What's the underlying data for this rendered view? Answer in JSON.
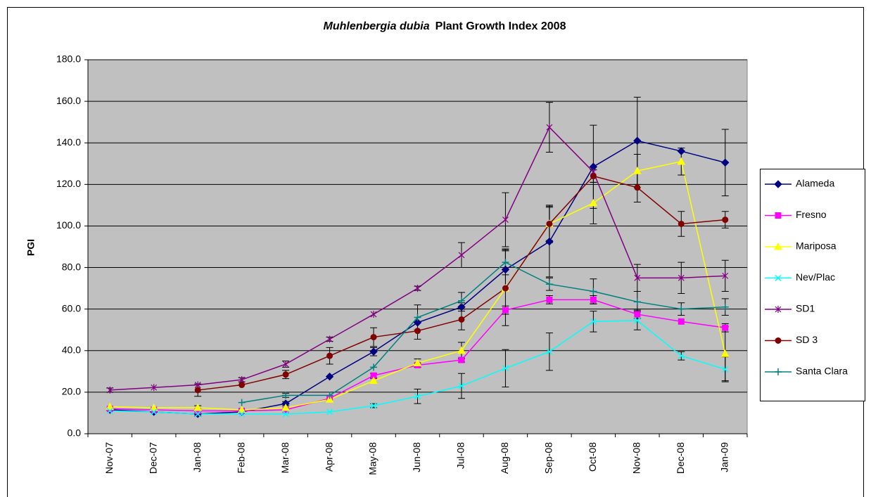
{
  "chart_data": {
    "type": "line",
    "title": [
      "Muhlenbergia dubia",
      "Plant Growth Index 2008"
    ],
    "y_label": "PGI",
    "categories": [
      "Nov-07",
      "Dec-07",
      "Jan-08",
      "Feb-08",
      "Mar-08",
      "Apr-08",
      "May-08",
      "Jun-08",
      "Jul-08",
      "Aug-08",
      "Sep-08",
      "Oct-08",
      "Nov-08",
      "Dec-08",
      "Jan-09"
    ],
    "ylim": [
      0,
      180
    ],
    "yticks": [
      {
        "value": 0,
        "label": "0.0"
      },
      {
        "value": 20,
        "label": "20.0"
      },
      {
        "value": 40,
        "label": "40.0"
      },
      {
        "value": 60,
        "label": "60.0"
      },
      {
        "value": 80,
        "label": "80.0"
      },
      {
        "value": 100,
        "label": "100.0"
      },
      {
        "value": 120,
        "label": "120.0"
      },
      {
        "value": 140,
        "label": "140.0"
      },
      {
        "value": 160,
        "label": "160.0"
      },
      {
        "value": 180,
        "label": "180.0"
      }
    ],
    "grid": true,
    "legend": "right",
    "series": [
      {
        "name": "Alameda",
        "color": "#000080",
        "marker": "diamond",
        "values": [
          11.5,
          10.5,
          9.5,
          10.5,
          14.5,
          27.5,
          39.5,
          53.5,
          61,
          79,
          92.5,
          128.5,
          141,
          136,
          130.5
        ],
        "errors": [
          null,
          null,
          1,
          null,
          1,
          null,
          2,
          null,
          2,
          10,
          17,
          20,
          21,
          null,
          16
        ]
      },
      {
        "name": "Fresno",
        "color": "#ff00ff",
        "marker": "square",
        "values": [
          12,
          11.5,
          11,
          11,
          11.5,
          17,
          28,
          33,
          35.5,
          59.5,
          64.5,
          64.5,
          57.5,
          54,
          51
        ],
        "errors": [
          null,
          null,
          null,
          null,
          null,
          null,
          1,
          1,
          1,
          2,
          2,
          2,
          2,
          null,
          2
        ]
      },
      {
        "name": "Mariposa",
        "color": "#ffff00",
        "marker": "triangle",
        "values": [
          13,
          12.5,
          12.5,
          11.5,
          12.5,
          16.5,
          25.5,
          34,
          40,
          70,
          101,
          111,
          126.5,
          131,
          38.5
        ],
        "errors": [
          null,
          null,
          1,
          null,
          null,
          null,
          1,
          2,
          4,
          null,
          9,
          10,
          8,
          6.5,
          13
        ]
      },
      {
        "name": "Nev/Plac",
        "color": "#00ffff",
        "marker": "x",
        "values": [
          11,
          10.5,
          9.5,
          9.5,
          9.5,
          10.5,
          13.5,
          18,
          23,
          31.5,
          39.5,
          54,
          54.5,
          37.5,
          31
        ],
        "errors": [
          null,
          null,
          null,
          null,
          null,
          null,
          1,
          3.5,
          6,
          9,
          9,
          5,
          4.5,
          2,
          6
        ]
      },
      {
        "name": "SD1",
        "color": "#800080",
        "marker": "asterisk",
        "values": [
          21,
          22.25,
          23.5,
          26,
          33.5,
          45.5,
          57.5,
          70,
          86,
          103,
          147.5,
          126,
          75,
          75,
          76
        ],
        "errors": [
          1,
          null,
          null,
          1,
          1.5,
          1,
          null,
          1,
          6,
          13,
          12,
          null,
          6.5,
          7.5,
          7.5
        ]
      },
      {
        "name": "SD 3",
        "color": "#800000",
        "marker": "circle",
        "values": [
          null,
          null,
          21,
          23.5,
          28.5,
          37.5,
          46.5,
          49.5,
          55,
          70,
          101,
          124,
          118.5,
          101,
          103
        ],
        "errors": [
          null,
          null,
          3,
          null,
          2,
          4,
          4.5,
          4,
          5,
          18,
          8,
          3,
          7,
          6,
          4
        ]
      },
      {
        "name": "Santa Clara",
        "color": "#008080",
        "marker": "plus",
        "values": [
          null,
          null,
          null,
          15,
          18.5,
          18.5,
          32,
          56,
          64,
          82.5,
          72,
          68.5,
          63.5,
          60,
          61
        ],
        "errors": [
          null,
          null,
          null,
          null,
          1,
          null,
          null,
          6,
          4,
          6,
          3,
          6,
          5,
          3,
          4
        ]
      }
    ]
  }
}
